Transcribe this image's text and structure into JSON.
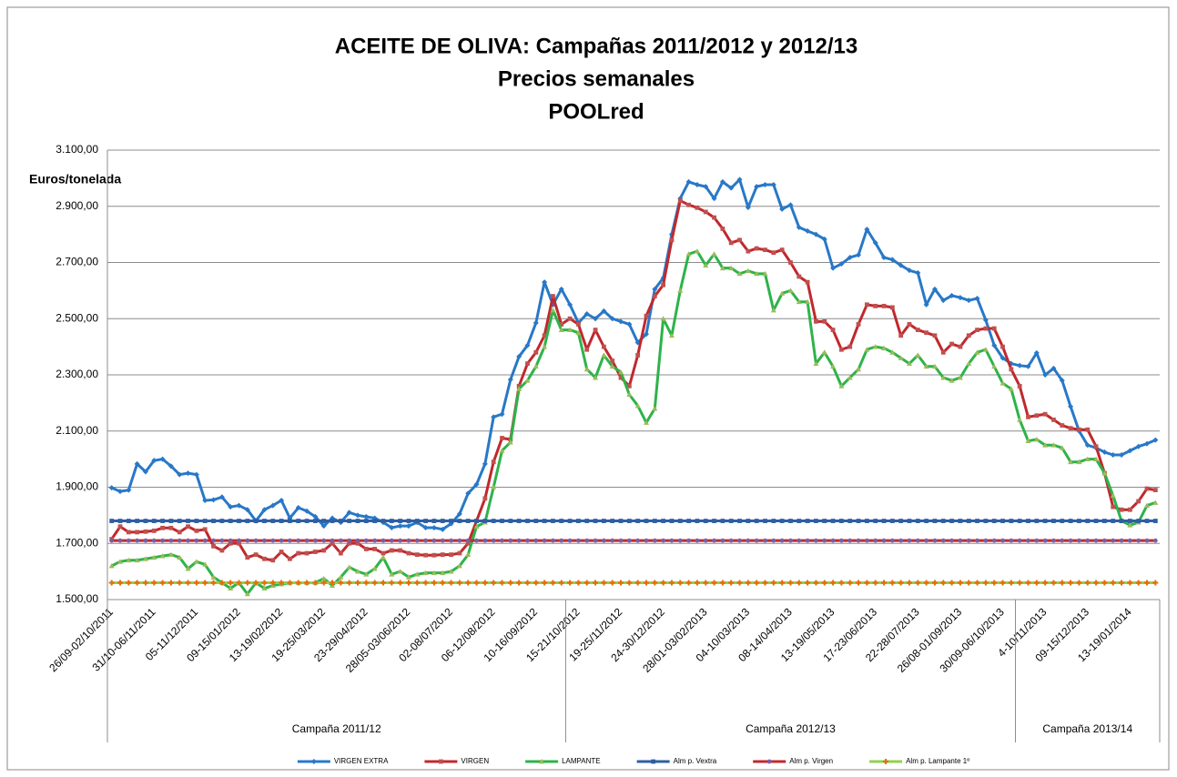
{
  "chart_data": {
    "type": "line",
    "title_lines": [
      "ACEITE DE OLIVA: Campañas 2011/2012 y 2012/13",
      "Precios semanales",
      "POOLred"
    ],
    "y_label": "Euros/tonelada",
    "categories": [
      "26/09-02/10/2011",
      null,
      null,
      null,
      null,
      "31/10-06/11/2011",
      null,
      null,
      null,
      null,
      "05-11/12/2011",
      null,
      null,
      null,
      null,
      "09-15/01/2012",
      null,
      null,
      null,
      null,
      "13-19/02/2012",
      null,
      null,
      null,
      null,
      "19-25/03/2012",
      null,
      null,
      null,
      null,
      "23-29/04/2012",
      null,
      null,
      null,
      null,
      "28/05-03/06/2012",
      null,
      null,
      null,
      null,
      "02-08/07/2012",
      null,
      null,
      null,
      null,
      "06-12/08/2012",
      null,
      null,
      null,
      null,
      "10-16/09/2012",
      null,
      null,
      null,
      null,
      "15-21/10/2012",
      null,
      null,
      null,
      null,
      "19-25/11/2012",
      null,
      null,
      null,
      null,
      "24-30/12/2012",
      null,
      null,
      null,
      null,
      "28/01-03/02/2013",
      null,
      null,
      null,
      null,
      "04-10/03/2013",
      null,
      null,
      null,
      null,
      "08-14/04/2013",
      null,
      null,
      null,
      null,
      "13-19/05/2013",
      null,
      null,
      null,
      null,
      "17-23/06/2013",
      null,
      null,
      null,
      null,
      "22-28/07/2013",
      null,
      null,
      null,
      null,
      "26/08-01/09/2013",
      null,
      null,
      null,
      null,
      "30/09-06/10/2013",
      null,
      null,
      null,
      null,
      "4-10/11/2013",
      null,
      null,
      null,
      null,
      "09-15/12/2013",
      null,
      null,
      null,
      null,
      "13-19/01/2014",
      null,
      null,
      null
    ],
    "groups": [
      {
        "label": "Campaña 2011/12",
        "count": 54
      },
      {
        "label": "Campaña 2012/13",
        "count": 53
      },
      {
        "label": "Campaña 2013/14",
        "count": 17
      }
    ],
    "ylim": [
      1500,
      3100
    ],
    "yticks": [
      {
        "value": 1500,
        "label": "1.500,00"
      },
      {
        "value": 1700,
        "label": "1.700,00"
      },
      {
        "value": 1900,
        "label": "1.900,00"
      },
      {
        "value": 2100,
        "label": "2.100,00"
      },
      {
        "value": 2300,
        "label": "2.300,00"
      },
      {
        "value": 2500,
        "label": "2.500,00"
      },
      {
        "value": 2700,
        "label": "2.700,00"
      },
      {
        "value": 2900,
        "label": "2.900,00"
      },
      {
        "value": 3100,
        "label": "3.100,00"
      }
    ],
    "grid": true,
    "legend": "bottom",
    "series": [
      {
        "name": "VIRGEN EXTRA",
        "color": "#2878c8",
        "marker": "diamond",
        "marker_color": "#2878c8",
        "values": [
          1898,
          1885,
          1890,
          1983,
          1955,
          1995,
          2000,
          1975,
          1945,
          1950,
          1945,
          1853,
          1855,
          1865,
          1830,
          1835,
          1820,
          1780,
          1820,
          1835,
          1853,
          1790,
          1827,
          1815,
          1795,
          1762,
          1790,
          1775,
          1810,
          1800,
          1795,
          1790,
          1775,
          1756,
          1762,
          1762,
          1775,
          1756,
          1756,
          1750,
          1770,
          1805,
          1878,
          1910,
          1983,
          2150,
          2160,
          2283,
          2365,
          2405,
          2485,
          2630,
          2550,
          2605,
          2550,
          2485,
          2517,
          2500,
          2527,
          2500,
          2490,
          2480,
          2415,
          2445,
          2605,
          2645,
          2800,
          2928,
          2987,
          2977,
          2970,
          2928,
          2987,
          2965,
          2995,
          2896,
          2970,
          2977,
          2977,
          2890,
          2905,
          2825,
          2812,
          2800,
          2783,
          2680,
          2695,
          2718,
          2727,
          2818,
          2770,
          2718,
          2710,
          2690,
          2672,
          2663,
          2550,
          2605,
          2565,
          2582,
          2575,
          2565,
          2572,
          2495,
          2405,
          2360,
          2340,
          2333,
          2330,
          2378,
          2300,
          2323,
          2280,
          2187,
          2100,
          2050,
          2040,
          2025,
          2015,
          2015,
          2030,
          2045,
          2055,
          2068
        ]
      },
      {
        "name": "VIRGEN",
        "color": "#c0282e",
        "marker": "square",
        "marker_color": "#c0504d",
        "values": [
          1715,
          1760,
          1740,
          1740,
          1742,
          1745,
          1755,
          1755,
          1740,
          1760,
          1745,
          1750,
          1690,
          1675,
          1700,
          1700,
          1650,
          1660,
          1645,
          1640,
          1670,
          1645,
          1665,
          1665,
          1670,
          1675,
          1700,
          1665,
          1700,
          1700,
          1680,
          1680,
          1665,
          1675,
          1675,
          1665,
          1660,
          1658,
          1658,
          1660,
          1660,
          1665,
          1700,
          1780,
          1860,
          1990,
          2075,
          2070,
          2260,
          2340,
          2380,
          2440,
          2580,
          2480,
          2500,
          2480,
          2390,
          2460,
          2400,
          2350,
          2290,
          2260,
          2370,
          2510,
          2580,
          2620,
          2780,
          2920,
          2905,
          2895,
          2880,
          2860,
          2820,
          2770,
          2780,
          2740,
          2750,
          2745,
          2735,
          2745,
          2700,
          2650,
          2630,
          2490,
          2490,
          2460,
          2390,
          2400,
          2480,
          2550,
          2545,
          2545,
          2540,
          2440,
          2480,
          2460,
          2450,
          2440,
          2380,
          2410,
          2400,
          2440,
          2460,
          2465,
          2465,
          2400,
          2320,
          2260,
          2150,
          2155,
          2160,
          2140,
          2120,
          2110,
          2105,
          2105,
          2045,
          1950,
          1830,
          1820,
          1820,
          1850,
          1895,
          1890
        ]
      },
      {
        "name": "LAMPANTE",
        "color": "#2db34a",
        "marker": "triangle",
        "marker_color": "#9bbb59",
        "values": [
          1620,
          1635,
          1640,
          1640,
          1645,
          1650,
          1655,
          1660,
          1650,
          1610,
          1635,
          1625,
          1580,
          1560,
          1540,
          1560,
          1520,
          1560,
          1540,
          1550,
          1555,
          1560,
          1560,
          1560,
          1560,
          1575,
          1550,
          1580,
          1615,
          1600,
          1590,
          1610,
          1650,
          1590,
          1600,
          1580,
          1590,
          1595,
          1595,
          1595,
          1600,
          1620,
          1660,
          1760,
          1775,
          1900,
          2030,
          2060,
          2250,
          2280,
          2330,
          2400,
          2530,
          2460,
          2460,
          2450,
          2320,
          2290,
          2370,
          2330,
          2310,
          2230,
          2190,
          2130,
          2180,
          2500,
          2440,
          2600,
          2730,
          2740,
          2690,
          2730,
          2680,
          2680,
          2660,
          2670,
          2660,
          2660,
          2530,
          2590,
          2600,
          2560,
          2560,
          2340,
          2380,
          2330,
          2260,
          2290,
          2320,
          2390,
          2400,
          2395,
          2380,
          2360,
          2340,
          2370,
          2330,
          2330,
          2290,
          2280,
          2290,
          2340,
          2380,
          2390,
          2330,
          2270,
          2250,
          2140,
          2065,
          2070,
          2050,
          2050,
          2040,
          1990,
          1990,
          2000,
          2000,
          1950,
          1870,
          1780,
          1765,
          1775,
          1835,
          1845
        ]
      },
      {
        "name": "Alm p. Vextra",
        "color": "#2e5fa3",
        "marker": "square",
        "marker_color": "#2e5fa3",
        "values": [
          1780,
          1780,
          1780,
          1780,
          1780,
          1780,
          1780,
          1780,
          1780,
          1780,
          1780,
          1780,
          1780,
          1780,
          1780,
          1780,
          1780,
          1780,
          1780,
          1780,
          1780,
          1780,
          1780,
          1780,
          1780,
          1780,
          1780,
          1780,
          1780,
          1780,
          1780,
          1780,
          1780,
          1780,
          1780,
          1780,
          1780,
          1780,
          1780,
          1780,
          1780,
          1780,
          1780,
          1780,
          1780,
          1780,
          1780,
          1780,
          1780,
          1780,
          1780,
          1780,
          1780,
          1780,
          1780,
          1780,
          1780,
          1780,
          1780,
          1780,
          1780,
          1780,
          1780,
          1780,
          1780,
          1780,
          1780,
          1780,
          1780,
          1780,
          1780,
          1780,
          1780,
          1780,
          1780,
          1780,
          1780,
          1780,
          1780,
          1780,
          1780,
          1780,
          1780,
          1780,
          1780,
          1780,
          1780,
          1780,
          1780,
          1780,
          1780,
          1780,
          1780,
          1780,
          1780,
          1780,
          1780,
          1780,
          1780,
          1780,
          1780,
          1780,
          1780,
          1780,
          1780,
          1780,
          1780,
          1780,
          1780,
          1780,
          1780,
          1780,
          1780,
          1780,
          1780,
          1780,
          1780,
          1780,
          1780,
          1780,
          1780,
          1780,
          1780,
          1780
        ]
      },
      {
        "name": "Alm p. Virgen",
        "color": "#c0282e",
        "marker": "circle",
        "marker_color": "#7b5ea7",
        "values": [
          1710,
          1710,
          1710,
          1710,
          1710,
          1710,
          1710,
          1710,
          1710,
          1710,
          1710,
          1710,
          1710,
          1710,
          1710,
          1710,
          1710,
          1710,
          1710,
          1710,
          1710,
          1710,
          1710,
          1710,
          1710,
          1710,
          1710,
          1710,
          1710,
          1710,
          1710,
          1710,
          1710,
          1710,
          1710,
          1710,
          1710,
          1710,
          1710,
          1710,
          1710,
          1710,
          1710,
          1710,
          1710,
          1710,
          1710,
          1710,
          1710,
          1710,
          1710,
          1710,
          1710,
          1710,
          1710,
          1710,
          1710,
          1710,
          1710,
          1710,
          1710,
          1710,
          1710,
          1710,
          1710,
          1710,
          1710,
          1710,
          1710,
          1710,
          1710,
          1710,
          1710,
          1710,
          1710,
          1710,
          1710,
          1710,
          1710,
          1710,
          1710,
          1710,
          1710,
          1710,
          1710,
          1710,
          1710,
          1710,
          1710,
          1710,
          1710,
          1710,
          1710,
          1710,
          1710,
          1710,
          1710,
          1710,
          1710,
          1710,
          1710,
          1710,
          1710,
          1710,
          1710,
          1710,
          1710,
          1710,
          1710,
          1710,
          1710,
          1710,
          1710,
          1710,
          1710,
          1710,
          1710,
          1710,
          1710,
          1710,
          1710,
          1710,
          1710,
          1710
        ]
      },
      {
        "name": "Alm p. Lampante  1º",
        "color": "#92d050",
        "marker": "plus",
        "marker_color": "#e46c0a",
        "values": [
          1560,
          1560,
          1560,
          1560,
          1560,
          1560,
          1560,
          1560,
          1560,
          1560,
          1560,
          1560,
          1560,
          1560,
          1560,
          1560,
          1560,
          1560,
          1560,
          1560,
          1560,
          1560,
          1560,
          1560,
          1560,
          1560,
          1560,
          1560,
          1560,
          1560,
          1560,
          1560,
          1560,
          1560,
          1560,
          1560,
          1560,
          1560,
          1560,
          1560,
          1560,
          1560,
          1560,
          1560,
          1560,
          1560,
          1560,
          1560,
          1560,
          1560,
          1560,
          1560,
          1560,
          1560,
          1560,
          1560,
          1560,
          1560,
          1560,
          1560,
          1560,
          1560,
          1560,
          1560,
          1560,
          1560,
          1560,
          1560,
          1560,
          1560,
          1560,
          1560,
          1560,
          1560,
          1560,
          1560,
          1560,
          1560,
          1560,
          1560,
          1560,
          1560,
          1560,
          1560,
          1560,
          1560,
          1560,
          1560,
          1560,
          1560,
          1560,
          1560,
          1560,
          1560,
          1560,
          1560,
          1560,
          1560,
          1560,
          1560,
          1560,
          1560,
          1560,
          1560,
          1560,
          1560,
          1560,
          1560,
          1560,
          1560,
          1560,
          1560,
          1560,
          1560,
          1560,
          1560,
          1560,
          1560,
          1560,
          1560,
          1560,
          1560,
          1560,
          1560
        ]
      }
    ]
  }
}
